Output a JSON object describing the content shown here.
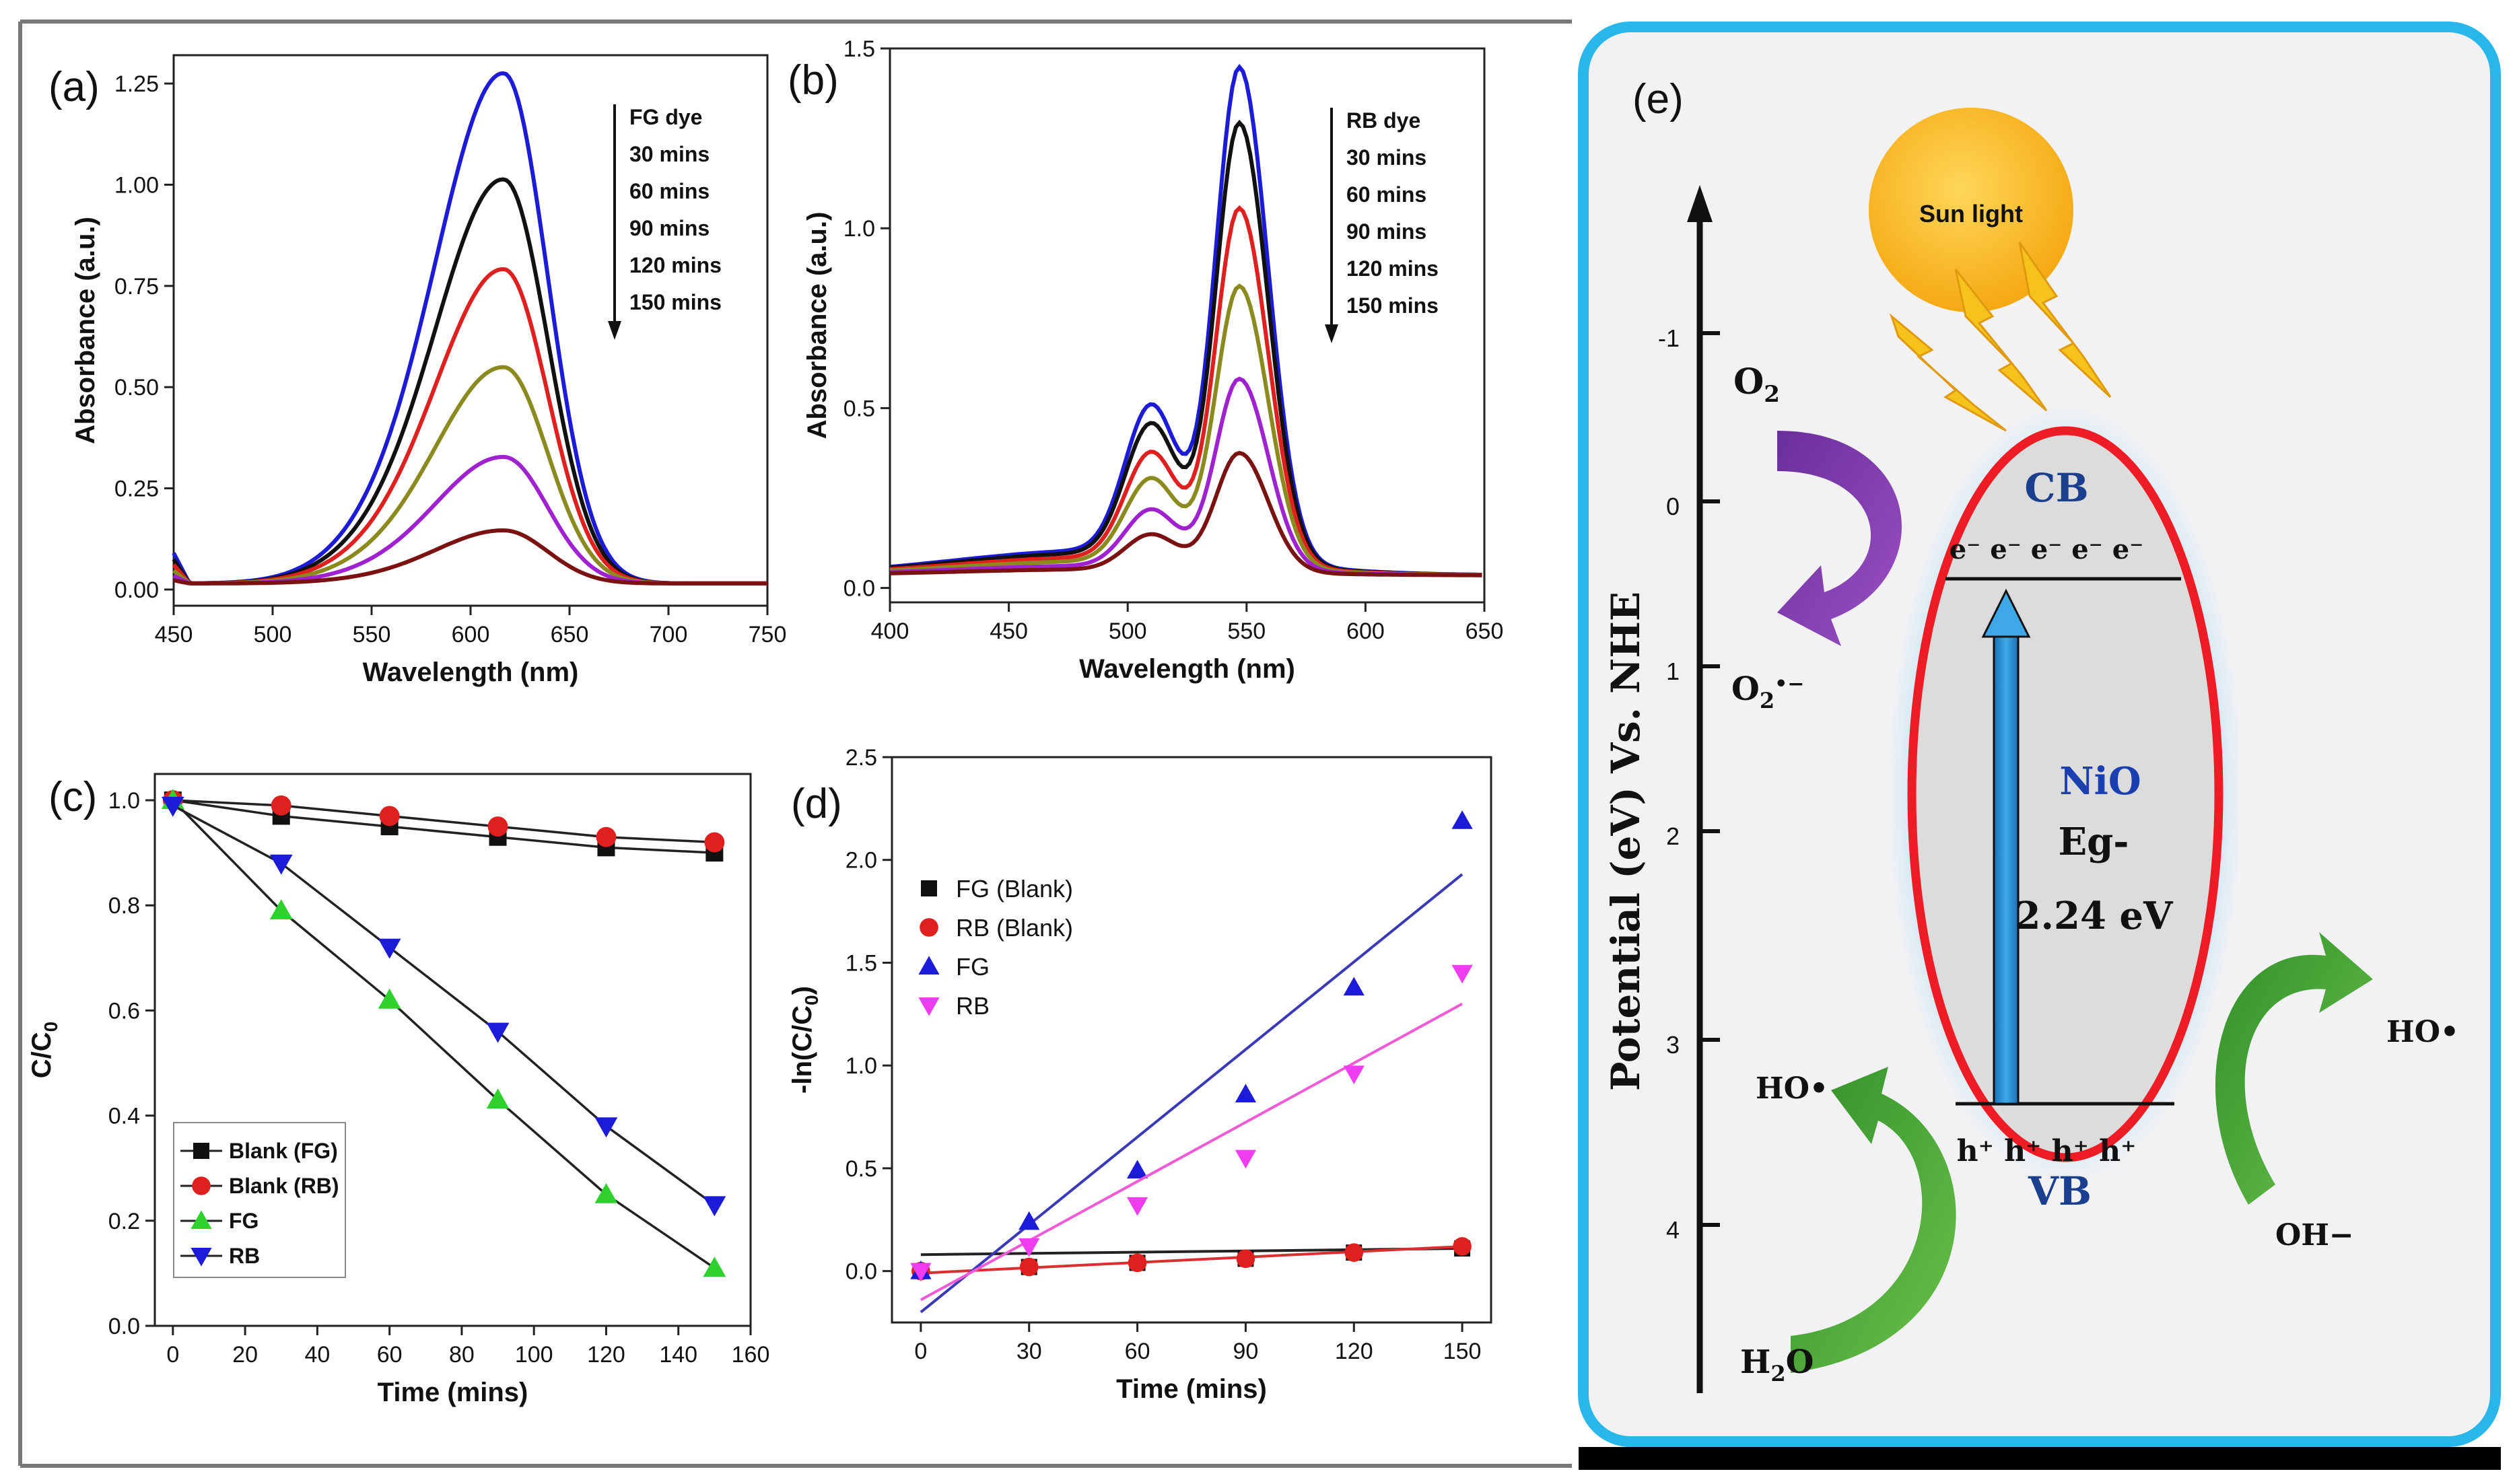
{
  "chart_data": [
    {
      "id": "a",
      "panel_label": "(a)",
      "type": "line",
      "xlabel": "Wavelength (nm)",
      "ylabel": "Absorbance (a.u.)",
      "xlim": [
        450,
        750
      ],
      "ylim": [
        -0.04,
        1.32
      ],
      "xticks": [
        450,
        500,
        550,
        600,
        650,
        700,
        750
      ],
      "yticks": [
        "0.00",
        "0.25",
        "0.50",
        "0.75",
        "1.00",
        "1.25"
      ],
      "peak": 617,
      "annotation": [
        "FG dye",
        "30 mins",
        "60 mins",
        "90 mins",
        "120 mins",
        "150 mins"
      ],
      "series": [
        {
          "name": "FG dye",
          "peak": 1.25,
          "color": "#1c1cd8"
        },
        {
          "name": "30 mins",
          "peak": 0.99,
          "color": "#111111"
        },
        {
          "name": "60 mins",
          "peak": 0.77,
          "color": "#e01f1f"
        },
        {
          "name": "90 mins",
          "peak": 0.53,
          "color": "#8a8a1e"
        },
        {
          "name": "120 mins",
          "peak": 0.31,
          "color": "#a021cf"
        },
        {
          "name": "150 mins",
          "peak": 0.13,
          "color": "#7a1212"
        }
      ]
    },
    {
      "id": "b",
      "panel_label": "(b)",
      "type": "line",
      "xlabel": "Wavelength (nm)",
      "ylabel": "Absorbance (a.u.)",
      "xlim": [
        400,
        650
      ],
      "ylim": [
        -0.04,
        1.5
      ],
      "xticks": [
        400,
        450,
        500,
        550,
        600,
        650
      ],
      "yticks": [
        "0.0",
        "0.5",
        "1.0",
        "1.5"
      ],
      "peak": 547,
      "annotation": [
        "RB dye",
        "30 mins",
        "60 mins",
        "90 mins",
        "120 mins",
        "150 mins"
      ],
      "series": [
        {
          "name": "RB dye",
          "peak": 1.37,
          "color": "#1c1cd8"
        },
        {
          "name": "30 mins",
          "peak": 1.22,
          "color": "#111111"
        },
        {
          "name": "60 mins",
          "peak": 0.99,
          "color": "#e01f1f"
        },
        {
          "name": "90 mins",
          "peak": 0.78,
          "color": "#8a8a1e"
        },
        {
          "name": "120 mins",
          "peak": 0.53,
          "color": "#a021cf"
        },
        {
          "name": "150 mins",
          "peak": 0.33,
          "color": "#7a1212"
        }
      ]
    },
    {
      "id": "c",
      "panel_label": "(c)",
      "type": "line",
      "xlabel": "Time (mins)",
      "ylabel": "C/C",
      "ylabel_sub": "0",
      "xlim": [
        -5,
        160
      ],
      "ylim": [
        0,
        1.05
      ],
      "xticks": [
        0,
        20,
        40,
        60,
        80,
        100,
        120,
        140,
        160
      ],
      "yticks": [
        "0.0",
        "0.2",
        "0.4",
        "0.6",
        "0.8",
        "1.0"
      ],
      "x": [
        0,
        30,
        60,
        90,
        120,
        150
      ],
      "series": [
        {
          "name": "Blank (FG)",
          "values": [
            1.0,
            0.97,
            0.95,
            0.93,
            0.91,
            0.9
          ],
          "color": "#111111",
          "marker": "square"
        },
        {
          "name": "Blank (RB)",
          "values": [
            1.0,
            0.99,
            0.97,
            0.95,
            0.93,
            0.92
          ],
          "color": "#e01f1f",
          "marker": "circle"
        },
        {
          "name": "FG",
          "values": [
            1.0,
            0.79,
            0.62,
            0.43,
            0.25,
            0.11
          ],
          "color": "#2ed12e",
          "marker": "triangle-up"
        },
        {
          "name": "RB",
          "values": [
            0.99,
            0.88,
            0.72,
            0.56,
            0.38,
            0.23
          ],
          "color": "#1c1cd8",
          "marker": "triangle-down"
        }
      ]
    },
    {
      "id": "d",
      "panel_label": "(d)",
      "type": "scatter",
      "xlabel": "Time (mins)",
      "ylabel": "-ln(C/C",
      "ylabel_sub": "0",
      "ylabel_end": ")",
      "xlim": [
        -8,
        158
      ],
      "ylim": [
        -0.25,
        2.5
      ],
      "xticks": [
        0,
        30,
        60,
        90,
        120,
        150
      ],
      "yticks": [
        "0.0",
        "0.5",
        "1.0",
        "1.5",
        "2.0",
        "2.5"
      ],
      "x": [
        0,
        30,
        60,
        90,
        120,
        150
      ],
      "series": [
        {
          "name": "FG (Blank)",
          "values": [
            0.0,
            0.02,
            0.04,
            0.06,
            0.09,
            0.11
          ],
          "fit": [
            0.08,
            0.11
          ],
          "color": "#111111",
          "fit_color": "#222222",
          "marker": "square"
        },
        {
          "name": "RB (Blank)",
          "values": [
            0.0,
            0.02,
            0.04,
            0.06,
            0.09,
            0.12
          ],
          "fit": [
            -0.01,
            0.12
          ],
          "color": "#e01f1f",
          "fit_color": "#d83030",
          "marker": "circle"
        },
        {
          "name": "FG",
          "values": [
            0.0,
            0.24,
            0.49,
            0.86,
            1.38,
            2.19
          ],
          "fit": [
            -0.2,
            1.93
          ],
          "color": "#1c1cd8",
          "fit_color": "#3a3ab8",
          "marker": "triangle-up"
        },
        {
          "name": "RB",
          "values": [
            0.0,
            0.12,
            0.32,
            0.55,
            0.96,
            1.45
          ],
          "fit": [
            -0.14,
            1.3
          ],
          "color": "#f03cf0",
          "fit_color": "#f05ad8",
          "marker": "triangle-down"
        }
      ]
    }
  ],
  "diagram": {
    "panel_label": "(e)",
    "axis_label": "Potential (eV) Vs. NHE",
    "axis_ticks": [
      "-1",
      "0",
      "1",
      "2",
      "3",
      "4"
    ],
    "sun_label": "Sun light",
    "cb_label": "CB",
    "vb_label": "VB",
    "electrons": "e⁻ e⁻ e⁻ e⁻ e⁻",
    "holes": "h⁺ h⁺ h⁺ h⁺",
    "material": "NiO",
    "eg_label": "Eg-",
    "eg_value": "2.24 eV",
    "o2": "O",
    "o2_sub": "2",
    "o2_radical": "O",
    "o2_radical_sub": "2",
    "o2_radical_sup": "•−",
    "ho_left": "HO•",
    "h2o": "H",
    "h2o_sub": "2",
    "h2o_end": "O",
    "ho_right": "HO•",
    "oh": "OH−",
    "border_color": "#29b6e8",
    "ellipse_color": "#ee1c24"
  }
}
